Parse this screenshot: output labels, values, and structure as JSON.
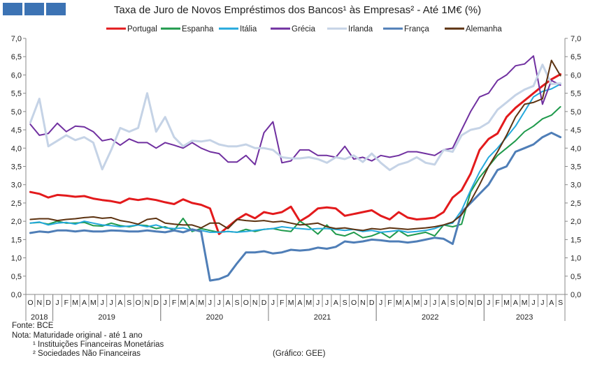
{
  "logo_color": "#3c73b4",
  "chart_data": {
    "type": "line",
    "title": "Taxa de Juro de Novos Empréstimos dos Bancos¹ às Empresas² - Até 1M€ (%)",
    "ylim": [
      0,
      7
    ],
    "yticks": [
      "0,0",
      "0,5",
      "1,0",
      "1,5",
      "2,0",
      "2,5",
      "3,0",
      "3,5",
      "4,0",
      "4,5",
      "5,0",
      "5,5",
      "6,0",
      "6,5",
      "7,0"
    ],
    "grid": false,
    "legend": "top",
    "x_months": [
      "O",
      "N",
      "D",
      "J",
      "F",
      "M",
      "A",
      "M",
      "J",
      "J",
      "A",
      "S",
      "O",
      "N",
      "D",
      "J",
      "F",
      "M",
      "A",
      "M",
      "J",
      "J",
      "A",
      "S",
      "O",
      "N",
      "D",
      "J",
      "F",
      "M",
      "A",
      "M",
      "J",
      "J",
      "A",
      "S",
      "O",
      "N",
      "D",
      "J",
      "F",
      "M",
      "A",
      "M",
      "J",
      "J",
      "A",
      "S",
      "O",
      "N",
      "D",
      "J",
      "F",
      "M",
      "A",
      "M",
      "J",
      "J",
      "A",
      "S"
    ],
    "year_labels": [
      {
        "label": "2018",
        "start": 0,
        "end": 2
      },
      {
        "label": "2019",
        "start": 3,
        "end": 14
      },
      {
        "label": "2020",
        "start": 15,
        "end": 26
      },
      {
        "label": "2021",
        "start": 27,
        "end": 38
      },
      {
        "label": "2022",
        "start": 39,
        "end": 50
      },
      {
        "label": "2023",
        "start": 51,
        "end": 59
      }
    ],
    "series": [
      {
        "name": "Portugal",
        "color": "#e31a1c",
        "width": 3,
        "values": [
          2.8,
          2.75,
          2.65,
          2.72,
          2.7,
          2.67,
          2.69,
          2.62,
          2.58,
          2.55,
          2.5,
          2.62,
          2.58,
          2.62,
          2.58,
          2.52,
          2.47,
          2.6,
          2.5,
          2.45,
          2.35,
          1.65,
          1.85,
          2.05,
          2.2,
          2.08,
          2.25,
          2.2,
          2.25,
          2.4,
          2.0,
          2.15,
          2.35,
          2.38,
          2.35,
          2.15,
          2.2,
          2.25,
          2.3,
          2.15,
          2.05,
          2.25,
          2.1,
          2.05,
          2.07,
          2.1,
          2.25,
          2.65,
          2.85,
          3.3,
          3.95,
          4.25,
          4.4,
          4.85,
          5.1,
          5.3,
          5.5,
          5.7,
          5.88,
          6.02
        ]
      },
      {
        "name": "Espanha",
        "color": "#1f9a4c",
        "width": 2,
        "values": [
          1.95,
          1.97,
          1.92,
          2.0,
          1.95,
          1.95,
          1.97,
          1.88,
          1.87,
          1.95,
          1.88,
          1.85,
          1.9,
          1.88,
          1.8,
          1.85,
          1.75,
          2.08,
          1.72,
          1.8,
          1.75,
          1.7,
          1.72,
          1.7,
          1.78,
          1.72,
          1.78,
          1.8,
          1.75,
          1.72,
          2.0,
          1.85,
          1.65,
          1.9,
          1.65,
          1.6,
          1.7,
          1.55,
          1.6,
          1.7,
          1.55,
          1.75,
          1.6,
          1.65,
          1.7,
          1.6,
          1.9,
          1.85,
          1.92,
          2.8,
          3.2,
          3.5,
          3.8,
          4.0,
          4.2,
          4.45,
          4.6,
          4.8,
          4.9,
          5.13
        ]
      },
      {
        "name": "Itália",
        "color": "#24a9dc",
        "width": 2,
        "values": [
          1.95,
          1.98,
          1.9,
          1.95,
          1.97,
          1.92,
          2.0,
          1.95,
          1.9,
          1.88,
          1.85,
          1.87,
          1.9,
          1.85,
          1.9,
          1.82,
          1.8,
          1.82,
          1.75,
          1.75,
          1.7,
          1.7,
          1.72,
          1.7,
          1.72,
          1.75,
          1.78,
          1.8,
          1.85,
          1.82,
          1.8,
          1.78,
          1.8,
          1.8,
          1.78,
          1.75,
          1.78,
          1.72,
          1.75,
          1.7,
          1.72,
          1.75,
          1.7,
          1.72,
          1.75,
          1.8,
          1.9,
          1.95,
          2.3,
          2.85,
          3.35,
          3.75,
          4.0,
          4.3,
          4.6,
          5.0,
          5.4,
          5.55,
          5.62,
          5.75
        ]
      },
      {
        "name": "Grécia",
        "color": "#7030a0",
        "width": 2,
        "values": [
          4.65,
          4.35,
          4.4,
          4.68,
          4.45,
          4.6,
          4.58,
          4.45,
          4.2,
          4.25,
          4.08,
          4.25,
          4.15,
          4.15,
          4.0,
          4.15,
          4.08,
          4.0,
          4.15,
          4.0,
          3.9,
          3.85,
          3.62,
          3.62,
          3.8,
          3.55,
          4.42,
          4.72,
          3.6,
          3.65,
          3.95,
          3.95,
          3.8,
          3.8,
          3.75,
          4.05,
          3.7,
          3.75,
          3.65,
          3.8,
          3.75,
          3.8,
          3.9,
          3.9,
          3.85,
          3.8,
          3.95,
          4.0,
          4.5,
          5.0,
          5.4,
          5.5,
          5.85,
          6.0,
          6.25,
          6.3,
          6.52,
          5.2,
          5.85,
          5.72
        ]
      },
      {
        "name": "Irlanda",
        "color": "#c5d3e6",
        "width": 3,
        "values": [
          4.7,
          5.35,
          4.05,
          4.2,
          4.35,
          4.22,
          4.3,
          4.15,
          3.42,
          3.95,
          4.55,
          4.45,
          4.55,
          5.5,
          4.45,
          4.85,
          4.3,
          4.05,
          4.2,
          4.18,
          4.22,
          4.1,
          4.05,
          4.05,
          4.1,
          4.0,
          4.0,
          3.95,
          3.75,
          3.72,
          3.72,
          3.75,
          3.7,
          3.6,
          3.75,
          3.7,
          3.8,
          3.62,
          3.85,
          3.6,
          3.4,
          3.55,
          3.62,
          3.75,
          3.6,
          3.55,
          3.95,
          3.9,
          4.35,
          4.5,
          4.55,
          4.7,
          5.05,
          5.25,
          5.45,
          5.6,
          5.7,
          6.28,
          5.75,
          5.77
        ]
      },
      {
        "name": "França",
        "color": "#4f7eb7",
        "width": 3,
        "values": [
          1.68,
          1.72,
          1.7,
          1.75,
          1.75,
          1.72,
          1.75,
          1.72,
          1.72,
          1.75,
          1.74,
          1.72,
          1.72,
          1.75,
          1.72,
          1.7,
          1.75,
          1.7,
          1.78,
          1.72,
          0.38,
          0.42,
          0.52,
          0.85,
          1.15,
          1.15,
          1.18,
          1.12,
          1.15,
          1.22,
          1.2,
          1.22,
          1.28,
          1.25,
          1.3,
          1.45,
          1.42,
          1.45,
          1.5,
          1.48,
          1.45,
          1.45,
          1.42,
          1.45,
          1.5,
          1.55,
          1.52,
          1.38,
          2.25,
          2.5,
          2.75,
          3.0,
          3.4,
          3.5,
          3.9,
          4.0,
          4.1,
          4.3,
          4.42,
          4.3
        ]
      },
      {
        "name": "Alemanha",
        "color": "#5c3210",
        "width": 2,
        "values": [
          2.05,
          2.07,
          2.07,
          2.02,
          2.05,
          2.07,
          2.1,
          2.12,
          2.08,
          2.1,
          2.02,
          1.98,
          1.92,
          2.05,
          2.08,
          1.95,
          1.92,
          1.9,
          1.9,
          1.82,
          1.95,
          1.95,
          1.8,
          2.05,
          2.02,
          2.0,
          2.02,
          1.98,
          2.0,
          1.95,
          1.9,
          1.92,
          1.95,
          1.85,
          1.8,
          1.82,
          1.78,
          1.75,
          1.8,
          1.78,
          1.82,
          1.8,
          1.78,
          1.8,
          1.82,
          1.85,
          1.9,
          1.98,
          2.18,
          2.55,
          3.0,
          3.5,
          3.9,
          4.35,
          4.85,
          5.2,
          5.25,
          5.35,
          6.4,
          5.98
        ]
      }
    ]
  },
  "notes": {
    "source": "Fonte: BCE",
    "nota": "Nota: Maturidade original - até 1 ano",
    "foot1": "¹ Instituições Financeiras Monetárias",
    "foot2": "² Sociedades Não Financeiras",
    "credit": "(Gráfico: GEE)"
  }
}
